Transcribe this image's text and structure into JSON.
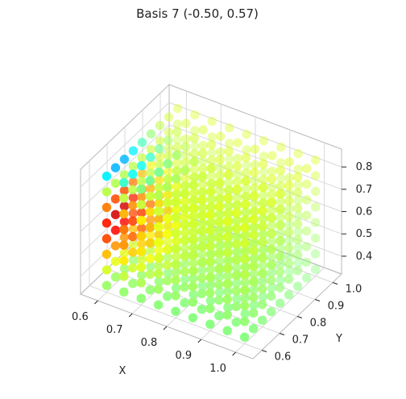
{
  "chart_data": {
    "type": "scatter",
    "projection": "3d",
    "title": "Basis 7 (-0.50, 0.57)",
    "xlabel": "X",
    "ylabel": "Y",
    "zlabel": "",
    "xlim": [
      0.55,
      1.05
    ],
    "ylim": [
      0.55,
      1.05
    ],
    "zlim": [
      0.32,
      0.88
    ],
    "x_ticks": [
      "0.6",
      "0.7",
      "0.8",
      "0.9",
      "1.0"
    ],
    "y_ticks": [
      "0.6",
      "0.7",
      "0.8",
      "0.9",
      "1.0"
    ],
    "z_ticks": [
      "0.4",
      "0.5",
      "0.6",
      "0.7",
      "0.8"
    ],
    "grid": true,
    "colormap": "jet",
    "color_range": [
      -0.5,
      0.57
    ],
    "point_grid": {
      "x": [
        0.6,
        0.65,
        0.7,
        0.75,
        0.8,
        0.85,
        0.9,
        0.95,
        1.0
      ],
      "y": [
        0.6,
        0.65,
        0.7,
        0.75,
        0.8,
        0.85,
        0.9,
        0.95,
        1.0
      ],
      "z": [
        0.35,
        0.42,
        0.49,
        0.56,
        0.63,
        0.7,
        0.77,
        0.84
      ]
    },
    "marker_size": 9
  }
}
